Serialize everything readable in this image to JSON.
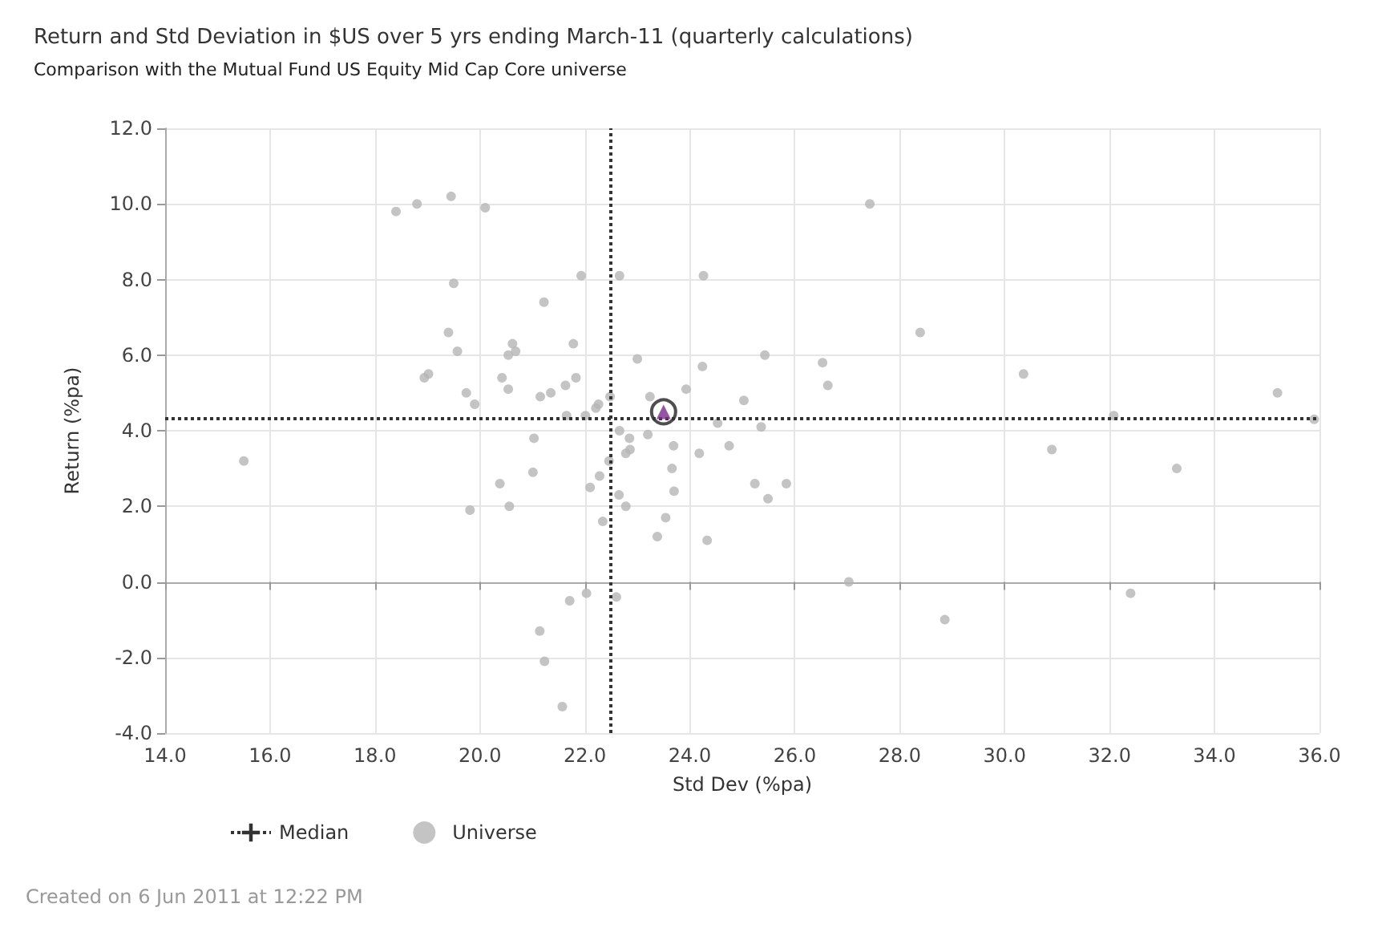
{
  "chart_data": {
    "type": "scatter",
    "title": "Return and Std Deviation in $US over 5 yrs ending March-11 (quarterly calculations)",
    "subtitle": "Comparison with the Mutual Fund US Equity Mid Cap Core universe",
    "xlabel": "Std Dev (%pa)",
    "ylabel": "Return (%pa)",
    "xlim": [
      14,
      36
    ],
    "xticks": [
      {
        "value": 14,
        "label": "14.0"
      },
      {
        "value": 16,
        "label": "16.0"
      },
      {
        "value": 18,
        "label": "18.0"
      },
      {
        "value": 20,
        "label": "20.0"
      },
      {
        "value": 22,
        "label": "22.0"
      },
      {
        "value": 24,
        "label": "24.0"
      },
      {
        "value": 26,
        "label": "26.0"
      },
      {
        "value": 28,
        "label": "28.0"
      },
      {
        "value": 30,
        "label": "30.0"
      },
      {
        "value": 32,
        "label": "32.0"
      },
      {
        "value": 34,
        "label": "34.0"
      },
      {
        "value": 36,
        "label": "36.0"
      }
    ],
    "ylim": [
      -4,
      12
    ],
    "yticks": [
      {
        "value": -4,
        "label": "-4.0"
      },
      {
        "value": -2,
        "label": "-2.0"
      },
      {
        "value": 0,
        "label": "0.0"
      },
      {
        "value": 2,
        "label": "2.0"
      },
      {
        "value": 4,
        "label": "4.0"
      },
      {
        "value": 6,
        "label": "6.0"
      },
      {
        "value": 8,
        "label": "8.0"
      },
      {
        "value": 10,
        "label": "10.0"
      },
      {
        "value": 12,
        "label": "12.0"
      }
    ],
    "grid": true,
    "legend": "bottom left",
    "ref_lines": [
      {
        "axis": "x",
        "value": 22.5,
        "label": "Median",
        "color": "#333333",
        "line_style": "dotted"
      },
      {
        "axis": "y",
        "value": 4.33,
        "color": "#333333",
        "line_style": "dotted"
      }
    ],
    "series": [
      {
        "name": "Universe",
        "color": "#b5b5b5",
        "marker": "circle",
        "x": [
          15.5,
          18.4,
          18.8,
          19.45,
          20.1,
          19.5,
          19.4,
          19.57,
          18.94,
          19.02,
          19.74,
          19.9,
          20.42,
          20.54,
          20.54,
          20.68,
          20.62,
          21.22,
          21.15,
          21.35,
          21.63,
          21.65,
          21.03,
          21.01,
          19.81,
          20.38,
          20.56,
          21.14,
          21.23,
          21.57,
          21.71,
          21.93,
          22.66,
          24.26,
          27.43,
          28.39,
          21.78,
          23.0,
          24.24,
          25.43,
          26.53,
          26.63,
          23.93,
          25.03,
          23.24,
          22.48,
          21.83,
          22.26,
          22.21,
          22.01,
          24.53,
          25.36,
          22.66,
          22.85,
          23.2,
          23.69,
          24.18,
          24.75,
          22.86,
          22.78,
          22.46,
          23.66,
          22.28,
          22.1,
          22.65,
          23.7,
          22.78,
          25.24,
          25.84,
          25.49,
          22.34,
          23.54,
          23.38,
          24.33,
          27.03,
          28.86,
          22.03,
          22.6,
          30.36,
          32.08,
          35.2,
          35.9,
          30.9,
          33.28,
          32.4
        ],
        "values": [
          3.2,
          9.8,
          10.0,
          10.2,
          9.9,
          7.9,
          6.6,
          6.1,
          5.4,
          5.5,
          5.0,
          4.7,
          5.4,
          5.1,
          6.0,
          6.1,
          6.3,
          7.4,
          4.9,
          5.0,
          5.2,
          4.4,
          3.8,
          2.9,
          1.9,
          2.6,
          2.0,
          -1.3,
          -2.1,
          -3.3,
          -0.5,
          8.1,
          8.1,
          8.1,
          10.0,
          6.6,
          6.3,
          5.9,
          5.7,
          6.0,
          5.8,
          5.2,
          5.1,
          4.8,
          4.9,
          4.9,
          5.4,
          4.7,
          4.6,
          4.4,
          4.2,
          4.1,
          4.0,
          3.8,
          3.9,
          3.6,
          3.4,
          3.6,
          3.5,
          3.4,
          3.2,
          3.0,
          2.8,
          2.5,
          2.3,
          2.4,
          2.0,
          2.6,
          2.6,
          2.2,
          1.6,
          1.7,
          1.2,
          1.1,
          0.0,
          -1.0,
          -0.3,
          -0.4,
          5.5,
          4.4,
          5.0,
          4.3,
          3.5,
          3.0,
          -0.3
        ]
      },
      {
        "color": "#222222",
        "marker": "circle",
        "x": [
          23.5
        ],
        "values": [
          4.5
        ]
      },
      {
        "color": "#7b2a8c",
        "marker": "triangle",
        "x": [
          23.5
        ],
        "values": [
          4.5
        ]
      }
    ],
    "annotations": [
      "Created on 6 Jun 2011 at 12:22 PM"
    ]
  }
}
